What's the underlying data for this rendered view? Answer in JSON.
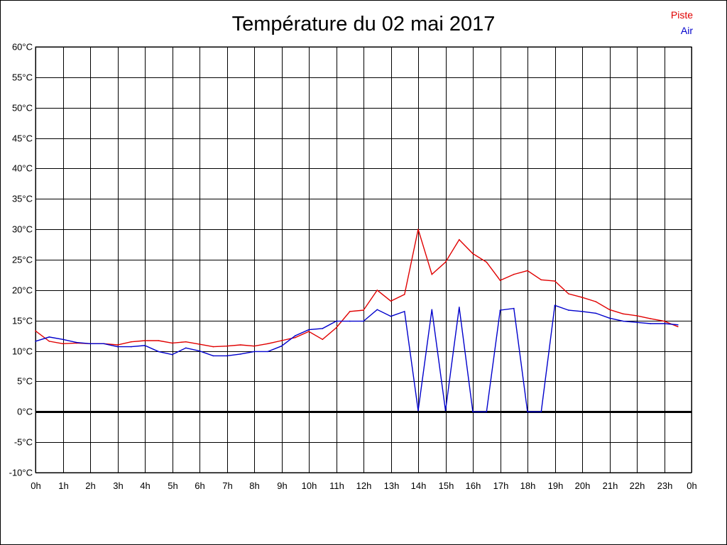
{
  "chart_data": {
    "type": "line",
    "title": "Température du 02 mai 2017",
    "xlabel": "",
    "ylabel": "",
    "ylim": [
      -10,
      60
    ],
    "yticks": [
      60,
      55,
      50,
      45,
      40,
      35,
      30,
      25,
      20,
      15,
      10,
      5,
      0,
      -5,
      -10
    ],
    "ytick_labels": [
      "60°C",
      "55°C",
      "50°C",
      "45°C",
      "40°C",
      "35°C",
      "30°C",
      "25°C",
      "20°C",
      "15°C",
      "10°C",
      "5°C",
      "0°C",
      "-5°C",
      "-10°C"
    ],
    "xlim": [
      0,
      24
    ],
    "xtick_labels": [
      "0h",
      "1h",
      "2h",
      "3h",
      "4h",
      "5h",
      "6h",
      "7h",
      "8h",
      "9h",
      "10h",
      "11h",
      "12h",
      "13h",
      "14h",
      "15h",
      "16h",
      "17h",
      "18h",
      "19h",
      "20h",
      "21h",
      "22h",
      "23h",
      "0h"
    ],
    "grid": true,
    "legend_position": "top-right",
    "x": [
      0,
      0.5,
      1,
      1.5,
      2,
      2.5,
      3,
      3.5,
      4,
      4.5,
      5,
      5.5,
      6,
      6.5,
      7,
      7.5,
      8,
      8.5,
      9,
      9.5,
      10,
      10.5,
      11,
      11.5,
      12,
      12.5,
      13,
      13.5,
      14,
      14.5,
      15,
      15.5,
      16,
      16.5,
      17,
      17.5,
      18,
      18.5,
      19,
      19.5,
      20,
      20.5,
      21,
      21.5,
      22,
      22.5,
      23,
      23.5
    ],
    "series": [
      {
        "name": "Piste",
        "color": "#e00000",
        "values": [
          13.3,
          11.6,
          11.2,
          11.3,
          11.2,
          11.2,
          11.0,
          11.5,
          11.7,
          11.7,
          11.3,
          11.5,
          11.1,
          10.7,
          10.8,
          11.0,
          10.8,
          11.2,
          11.7,
          12.2,
          13.2,
          11.9,
          13.8,
          16.5,
          16.7,
          20.0,
          18.2,
          19.3,
          30.0,
          22.6,
          24.6,
          28.3,
          26.0,
          24.6,
          21.6,
          22.6,
          23.2,
          21.7,
          21.5,
          19.4,
          18.8,
          18.1,
          16.8,
          16.1,
          15.8,
          15.3,
          14.9,
          14.0
        ]
      },
      {
        "name": "Air",
        "color": "#0000cc",
        "values": [
          11.6,
          12.3,
          11.9,
          11.4,
          11.2,
          11.2,
          10.7,
          10.7,
          10.9,
          9.9,
          9.4,
          10.5,
          10.0,
          9.2,
          9.2,
          9.5,
          9.9,
          9.9,
          10.8,
          12.5,
          13.5,
          13.7,
          14.9,
          14.9,
          14.9,
          16.8,
          15.7,
          16.5,
          0.2,
          16.8,
          0.2,
          17.2,
          0.0,
          0.0,
          16.7,
          17.0,
          0.0,
          0.0,
          17.5,
          16.7,
          16.5,
          16.2,
          15.4,
          14.9,
          14.7,
          14.5,
          14.5,
          14.3
        ]
      }
    ]
  }
}
